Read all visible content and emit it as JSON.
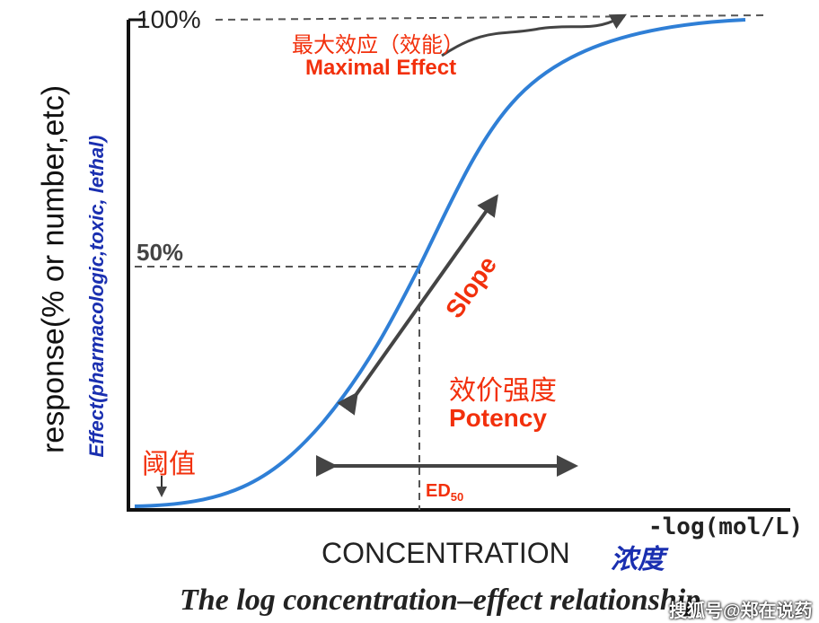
{
  "y_axis": {
    "label_black": "response(% or number,etc)",
    "label_blue": "Effect(pharmacologic,toxic, lethal)",
    "tick_100": "100%",
    "tick_50": "50%"
  },
  "x_axis": {
    "label": "CONCENTRATION",
    "label_cn": "浓度",
    "unit": "-log(mol/L)"
  },
  "annotations": {
    "max_effect_cn": "最大效应（效能）",
    "max_effect_en": "Maximal Effect",
    "slope": "Slope",
    "potency_cn": "效价强度",
    "potency_en": "Potency",
    "threshold_cn": "阈值",
    "ed50": "ED",
    "ed50_sub": "50"
  },
  "caption": "The log concentration–effect relationship",
  "watermark": "搜狐号@郑在说药",
  "colors": {
    "curve": "#2f7fd6",
    "annotation": "#f2300c",
    "axis_blue": "#1a2fb0",
    "arrow": "#444444"
  }
}
